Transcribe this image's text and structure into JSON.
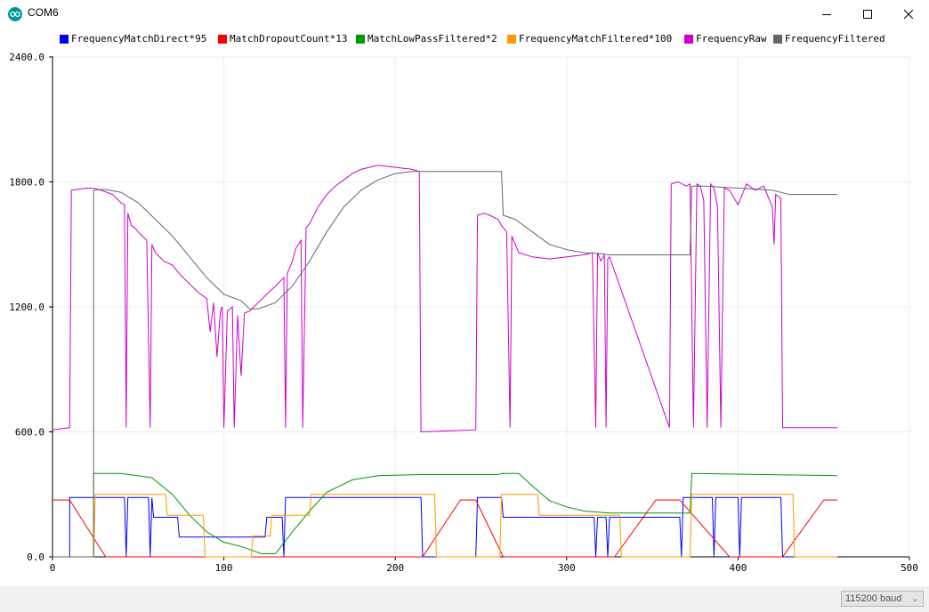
{
  "window": {
    "title": "COM6",
    "icon": "arduino-icon",
    "controls": [
      "minimize-icon",
      "maximize-icon",
      "close-icon"
    ]
  },
  "legend": [
    {
      "name": "FrequencyMatchDirect*95",
      "color": "#0000ff"
    },
    {
      "name": "MatchDropoutCount*13",
      "color": "#ff0000"
    },
    {
      "name": "MatchLowPassFiltered*2",
      "color": "#009900"
    },
    {
      "name": "FrequencyMatchFiltered*100",
      "color": "#ff9900"
    },
    {
      "name": "FrequencyRaw",
      "color": "#cc00cc"
    },
    {
      "name": "FrequencyFiltered",
      "color": "#666666"
    }
  ],
  "status": {
    "baud_rate": "115200 baud"
  },
  "chart_data": {
    "type": "line",
    "xlim": [
      0,
      500
    ],
    "ylim": [
      0,
      2400
    ],
    "x_ticks": [
      "0",
      "100",
      "200",
      "300",
      "400",
      "500"
    ],
    "y_ticks": [
      "0.0",
      "600.0",
      "1200.0",
      "1800.0",
      "2400.0"
    ],
    "grid": true,
    "legend_position": "top",
    "series": [
      {
        "name": "FrequencyMatchDirect*95",
        "color": "#0000ff",
        "points": [
          [
            0,
            0
          ],
          [
            10,
            0
          ],
          [
            10,
            285
          ],
          [
            42,
            285
          ],
          [
            43,
            0
          ],
          [
            44,
            285
          ],
          [
            56,
            285
          ],
          [
            57,
            0
          ],
          [
            58,
            285
          ],
          [
            59,
            190
          ],
          [
            73,
            190
          ],
          [
            74,
            95
          ],
          [
            124,
            95
          ],
          [
            125,
            190
          ],
          [
            134,
            190
          ],
          [
            135,
            0
          ],
          [
            136,
            285
          ],
          [
            215,
            285
          ],
          [
            216,
            0
          ],
          [
            247,
            0
          ],
          [
            248,
            285
          ],
          [
            262,
            285
          ],
          [
            263,
            190
          ],
          [
            316,
            190
          ],
          [
            317,
            0
          ],
          [
            318,
            190
          ],
          [
            323,
            190
          ],
          [
            324,
            0
          ],
          [
            325,
            190
          ],
          [
            366,
            190
          ],
          [
            367,
            0
          ],
          [
            368,
            285
          ],
          [
            385,
            285
          ],
          [
            386,
            0
          ],
          [
            387,
            285
          ],
          [
            400,
            285
          ],
          [
            401,
            0
          ],
          [
            402,
            285
          ],
          [
            425,
            285
          ],
          [
            426,
            0
          ],
          [
            458,
            0
          ]
        ]
      },
      {
        "name": "MatchDropoutCount*13",
        "color": "#ff0000",
        "points": [
          [
            0,
            273
          ],
          [
            10,
            273
          ],
          [
            31,
            0
          ],
          [
            108,
            0
          ],
          [
            108,
            0
          ],
          [
            216,
            0
          ],
          [
            238,
            273
          ],
          [
            247,
            273
          ],
          [
            263,
            0
          ],
          [
            315,
            0
          ],
          [
            328,
            0
          ],
          [
            352,
            273
          ],
          [
            366,
            273
          ],
          [
            395,
            0
          ],
          [
            426,
            0
          ],
          [
            450,
            273
          ],
          [
            458,
            273
          ]
        ]
      },
      {
        "name": "MatchLowPassFiltered*2",
        "color": "#009900",
        "points": [
          [
            0,
            0
          ],
          [
            24,
            0
          ],
          [
            24,
            400
          ],
          [
            40,
            400
          ],
          [
            58,
            380
          ],
          [
            70,
            300
          ],
          [
            80,
            200
          ],
          [
            90,
            120
          ],
          [
            100,
            70
          ],
          [
            110,
            50
          ],
          [
            122,
            15
          ],
          [
            130,
            15
          ],
          [
            140,
            120
          ],
          [
            150,
            220
          ],
          [
            160,
            310
          ],
          [
            175,
            370
          ],
          [
            190,
            390
          ],
          [
            215,
            395
          ],
          [
            260,
            395
          ],
          [
            262,
            400
          ],
          [
            272,
            400
          ],
          [
            280,
            340
          ],
          [
            290,
            270
          ],
          [
            300,
            240
          ],
          [
            310,
            220
          ],
          [
            325,
            210
          ],
          [
            365,
            210
          ],
          [
            372,
            210
          ],
          [
            373,
            400
          ],
          [
            458,
            390
          ]
        ]
      },
      {
        "name": "FrequencyMatchFiltered*100",
        "color": "#ff9900",
        "points": [
          [
            0,
            0
          ],
          [
            24,
            0
          ],
          [
            25,
            300
          ],
          [
            66,
            300
          ],
          [
            67,
            200
          ],
          [
            88,
            200
          ],
          [
            89,
            0
          ],
          [
            116,
            0
          ],
          [
            117,
            100
          ],
          [
            127,
            100
          ],
          [
            128,
            200
          ],
          [
            150,
            200
          ],
          [
            151,
            300
          ],
          [
            223,
            300
          ],
          [
            224,
            0
          ],
          [
            261,
            0
          ],
          [
            262,
            300
          ],
          [
            283,
            300
          ],
          [
            284,
            200
          ],
          [
            331,
            200
          ],
          [
            332,
            0
          ],
          [
            372,
            0
          ],
          [
            373,
            300
          ],
          [
            432,
            300
          ],
          [
            433,
            0
          ],
          [
            458,
            0
          ]
        ]
      },
      {
        "name": "FrequencyRaw",
        "color": "#cc00cc",
        "points": [
          [
            0,
            610
          ],
          [
            10,
            620
          ],
          [
            11,
            1760
          ],
          [
            15,
            1765
          ],
          [
            20,
            1770
          ],
          [
            25,
            1768
          ],
          [
            30,
            1755
          ],
          [
            35,
            1740
          ],
          [
            40,
            1700
          ],
          [
            42,
            1690
          ],
          [
            43,
            620
          ],
          [
            44,
            1650
          ],
          [
            46,
            1590
          ],
          [
            48,
            1580
          ],
          [
            50,
            1560
          ],
          [
            55,
            1520
          ],
          [
            57,
            620
          ],
          [
            58,
            1500
          ],
          [
            60,
            1460
          ],
          [
            65,
            1420
          ],
          [
            70,
            1400
          ],
          [
            75,
            1350
          ],
          [
            80,
            1310
          ],
          [
            85,
            1270
          ],
          [
            90,
            1240
          ],
          [
            92,
            1080
          ],
          [
            94,
            1220
          ],
          [
            96,
            960
          ],
          [
            98,
            1180
          ],
          [
            99,
            1200
          ],
          [
            100,
            620
          ],
          [
            102,
            1180
          ],
          [
            105,
            1200
          ],
          [
            106,
            620
          ],
          [
            108,
            1160
          ],
          [
            110,
            870
          ],
          [
            112,
            1170
          ],
          [
            115,
            1180
          ],
          [
            120,
            1220
          ],
          [
            125,
            1260
          ],
          [
            130,
            1300
          ],
          [
            135,
            1340
          ],
          [
            136,
            620
          ],
          [
            137,
            1360
          ],
          [
            140,
            1420
          ],
          [
            142,
            1480
          ],
          [
            145,
            1520
          ],
          [
            146,
            620
          ],
          [
            148,
            1580
          ],
          [
            150,
            1600
          ],
          [
            155,
            1680
          ],
          [
            160,
            1740
          ],
          [
            165,
            1780
          ],
          [
            170,
            1810
          ],
          [
            175,
            1840
          ],
          [
            180,
            1860
          ],
          [
            190,
            1880
          ],
          [
            200,
            1870
          ],
          [
            210,
            1860
          ],
          [
            214,
            1850
          ],
          [
            215,
            600
          ],
          [
            247,
            610
          ],
          [
            248,
            1640
          ],
          [
            252,
            1650
          ],
          [
            255,
            1640
          ],
          [
            260,
            1620
          ],
          [
            262,
            1590
          ],
          [
            265,
            1560
          ],
          [
            267,
            620
          ],
          [
            268,
            1540
          ],
          [
            272,
            1460
          ],
          [
            280,
            1440
          ],
          [
            290,
            1430
          ],
          [
            300,
            1440
          ],
          [
            310,
            1450
          ],
          [
            315,
            1460
          ],
          [
            317,
            620
          ],
          [
            318,
            1460
          ],
          [
            320,
            1420
          ],
          [
            322,
            1450
          ],
          [
            323,
            620
          ],
          [
            324,
            1430
          ],
          [
            325,
            1440
          ],
          [
            360,
            620
          ],
          [
            361,
            1790
          ],
          [
            365,
            1800
          ],
          [
            370,
            1780
          ],
          [
            372,
            1790
          ],
          [
            374,
            620
          ],
          [
            376,
            1790
          ],
          [
            378,
            1780
          ],
          [
            380,
            1710
          ],
          [
            382,
            620
          ],
          [
            384,
            1790
          ],
          [
            386,
            1770
          ],
          [
            388,
            1680
          ],
          [
            390,
            620
          ],
          [
            392,
            1770
          ],
          [
            395,
            1760
          ],
          [
            400,
            1690
          ],
          [
            405,
            1790
          ],
          [
            410,
            1760
          ],
          [
            415,
            1780
          ],
          [
            420,
            1680
          ],
          [
            421,
            1500
          ],
          [
            422,
            1740
          ],
          [
            425,
            1720
          ],
          [
            426,
            620
          ],
          [
            458,
            620
          ]
        ]
      },
      {
        "name": "FrequencyFiltered",
        "color": "#666666",
        "points": [
          [
            0,
            0
          ],
          [
            24,
            0
          ],
          [
            24,
            1760
          ],
          [
            30,
            1765
          ],
          [
            40,
            1750
          ],
          [
            50,
            1700
          ],
          [
            60,
            1620
          ],
          [
            70,
            1540
          ],
          [
            80,
            1440
          ],
          [
            90,
            1340
          ],
          [
            100,
            1260
          ],
          [
            110,
            1230
          ],
          [
            115,
            1190
          ],
          [
            120,
            1190
          ],
          [
            130,
            1220
          ],
          [
            140,
            1300
          ],
          [
            150,
            1420
          ],
          [
            160,
            1560
          ],
          [
            170,
            1680
          ],
          [
            180,
            1760
          ],
          [
            190,
            1810
          ],
          [
            200,
            1840
          ],
          [
            210,
            1850
          ],
          [
            215,
            1850
          ],
          [
            262,
            1850
          ],
          [
            263,
            1640
          ],
          [
            270,
            1620
          ],
          [
            280,
            1560
          ],
          [
            290,
            1500
          ],
          [
            300,
            1475
          ],
          [
            310,
            1460
          ],
          [
            320,
            1455
          ],
          [
            325,
            1450
          ],
          [
            372,
            1450
          ],
          [
            373,
            1780
          ],
          [
            380,
            1780
          ],
          [
            400,
            1770
          ],
          [
            420,
            1760
          ],
          [
            425,
            1750
          ],
          [
            430,
            1740
          ],
          [
            458,
            1740
          ]
        ]
      }
    ]
  }
}
